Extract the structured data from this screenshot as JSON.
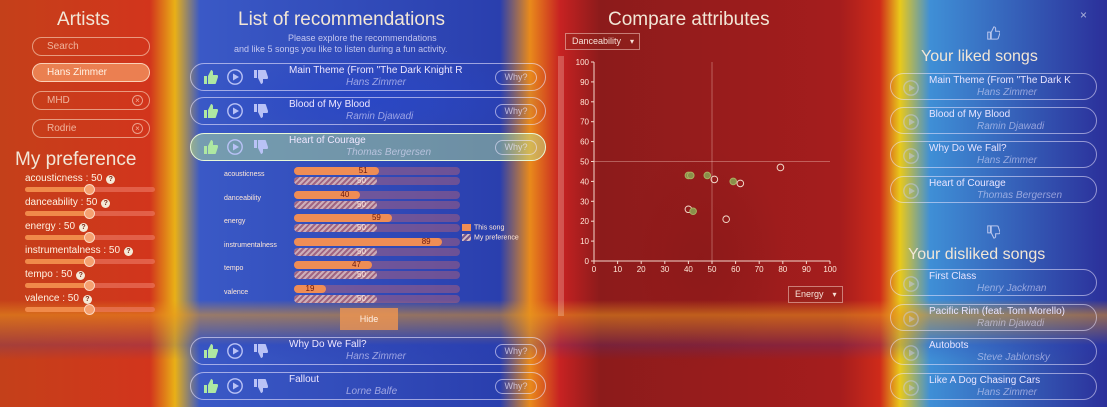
{
  "artists_panel": {
    "title": "Artists",
    "search_placeholder": "Search",
    "artists": [
      {
        "name": "Hans Zimmer",
        "active": true
      },
      {
        "name": "MHD",
        "active": false
      },
      {
        "name": "Rodrie",
        "active": false
      }
    ]
  },
  "preference_panel": {
    "title": "My preference",
    "sliders": [
      {
        "label": "acousticness : 50",
        "value": 50
      },
      {
        "label": "danceability : 50",
        "value": 50
      },
      {
        "label": "energy : 50",
        "value": 50
      },
      {
        "label": "instrumentalness : 50",
        "value": 50
      },
      {
        "label": "tempo : 50",
        "value": 50
      },
      {
        "label": "valence : 50",
        "value": 50
      }
    ]
  },
  "recommendations": {
    "title": "List of recommendations",
    "intro_1": "Please explore the recommendations",
    "intro_2": "and like 5 songs you like to listen during a fun activity.",
    "why_label": "Why?",
    "hide_label": "Hide",
    "songs": [
      {
        "title": "Main Theme (From \"The Dark Knight R",
        "artist": "Hans Zimmer",
        "highlight": false
      },
      {
        "title": "Blood of My Blood",
        "artist": "Ramin Djawadi",
        "highlight": false
      },
      {
        "title": "Heart of Courage",
        "artist": "Thomas Bergersen",
        "highlight": true
      },
      {
        "title": "Why Do We Fall?",
        "artist": "Hans Zimmer",
        "highlight": false
      },
      {
        "title": "Fallout",
        "artist": "Lorne Balfe",
        "highlight": false
      }
    ],
    "explanation": {
      "features": [
        {
          "name": "acousticness",
          "song": 51,
          "pref": 50
        },
        {
          "name": "danceability",
          "song": 40,
          "pref": 50
        },
        {
          "name": "energy",
          "song": 59,
          "pref": 50
        },
        {
          "name": "instrumentalness",
          "song": 89,
          "pref": 50
        },
        {
          "name": "tempo",
          "song": 47,
          "pref": 50
        },
        {
          "name": "valence",
          "song": 19,
          "pref": 50
        }
      ],
      "legend_song": "This song",
      "legend_pref": "My preference"
    }
  },
  "compare": {
    "title": "Compare attributes",
    "y_dropdown": "Danceability",
    "x_dropdown": "Energy"
  },
  "chart_data": {
    "type": "scatter",
    "xlabel": "Energy",
    "ylabel": "Danceability",
    "xlim": [
      0,
      100
    ],
    "ylim": [
      0,
      100
    ],
    "x_ticks": [
      0,
      10,
      20,
      30,
      40,
      50,
      60,
      70,
      80,
      90,
      100
    ],
    "y_ticks": [
      0,
      10,
      20,
      30,
      40,
      50,
      60,
      70,
      80,
      90,
      100
    ],
    "reference": {
      "x": 50,
      "y": 50
    },
    "points": [
      {
        "x": 40,
        "y": 43,
        "filled": true
      },
      {
        "x": 41,
        "y": 43,
        "filled": true
      },
      {
        "x": 48,
        "y": 43,
        "filled": true
      },
      {
        "x": 51,
        "y": 41,
        "filled": false
      },
      {
        "x": 59,
        "y": 40,
        "filled": true
      },
      {
        "x": 62,
        "y": 39,
        "filled": false
      },
      {
        "x": 79,
        "y": 47,
        "filled": false
      },
      {
        "x": 40,
        "y": 26,
        "filled": false
      },
      {
        "x": 42,
        "y": 25,
        "filled": true
      },
      {
        "x": 56,
        "y": 21,
        "filled": false
      }
    ]
  },
  "liked": {
    "title": "Your liked songs",
    "songs": [
      {
        "title": "Main Theme (From \"The Dark K",
        "artist": "Hans Zimmer"
      },
      {
        "title": "Blood of My Blood",
        "artist": "Ramin Djawadi"
      },
      {
        "title": "Why Do We Fall?",
        "artist": "Hans Zimmer"
      },
      {
        "title": "Heart of Courage",
        "artist": "Thomas Bergersen"
      }
    ]
  },
  "disliked": {
    "title": "Your disliked songs",
    "songs": [
      {
        "title": "First Class",
        "artist": "Henry Jackman"
      },
      {
        "title": "Pacific Rim (feat. Tom Morello)",
        "artist": "Ramin Djawadi"
      },
      {
        "title": "Autobots",
        "artist": "Steve Jablonsky"
      },
      {
        "title": "Like A Dog Chasing Cars",
        "artist": "Hans Zimmer"
      }
    ]
  },
  "colors": {
    "accent": "#ef8d55",
    "highlight": "#c8f0a0"
  }
}
